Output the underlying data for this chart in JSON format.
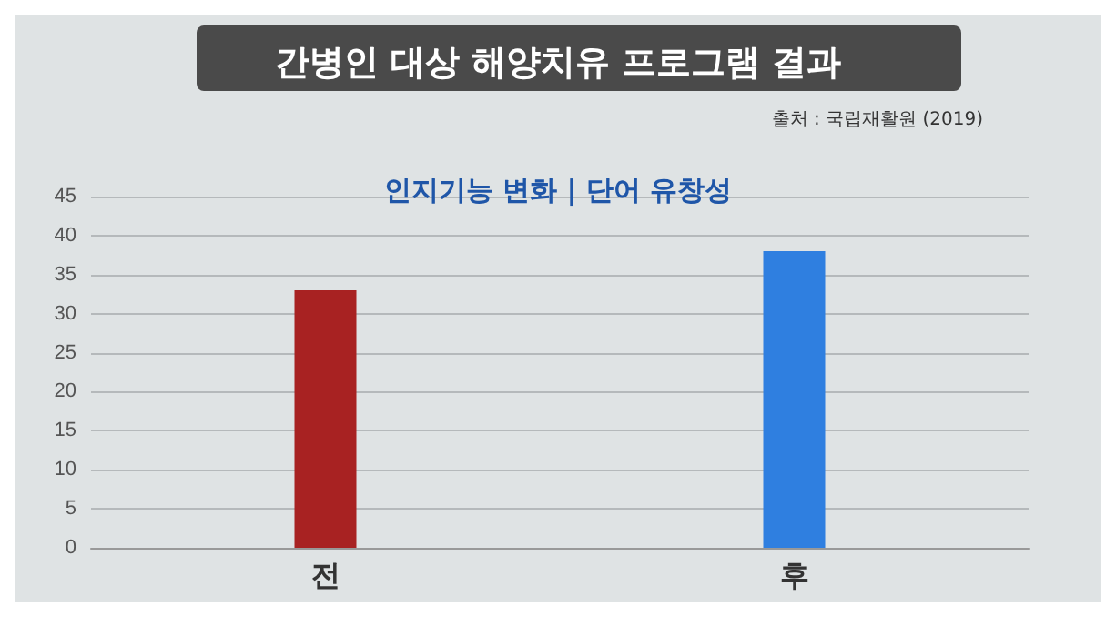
{
  "chart_data": {
    "type": "bar",
    "title": "간병인 대상 해양치유 프로그램 결과",
    "subtitle": "인지기능 변화 | 단어 유창성",
    "annotations": [
      "출처 : 국립재활원 (2019)"
    ],
    "categories": [
      "전",
      "후"
    ],
    "values": [
      33,
      38
    ],
    "colors": [
      "#a82222",
      "#2f7fe0"
    ],
    "ylim": [
      0,
      45
    ],
    "yticks": [
      0,
      5,
      10,
      15,
      20,
      25,
      30,
      35,
      40,
      45
    ],
    "grid": "y"
  }
}
